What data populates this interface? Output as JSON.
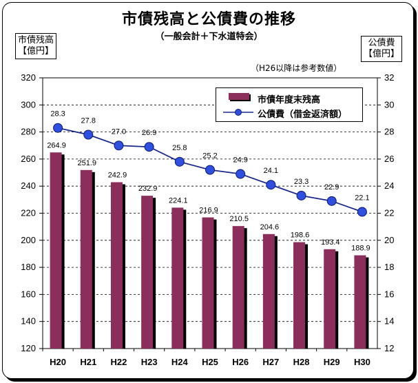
{
  "title": "市債残高と公債費の推移",
  "subtitle": "（一般会計＋下水道特会）",
  "note": "（H26以降は参考数値）",
  "unit_left": [
    "市債残高",
    "【億円】"
  ],
  "unit_right": [
    "公債費",
    "【億円】"
  ],
  "colors": {
    "bar": "#8B2E5C",
    "bar_shadow": "#000000",
    "line": "#1a2a8c",
    "marker": "#2f4fe0"
  },
  "chart_data": {
    "type": "bar",
    "categories": [
      "H20",
      "H21",
      "H22",
      "H23",
      "H24",
      "H25",
      "H26",
      "H27",
      "H28",
      "H29",
      "H30"
    ],
    "series": [
      {
        "name": "市債年度末残高",
        "type": "bar",
        "axis": "left",
        "values": [
          264.9,
          251.9,
          242.9,
          232.9,
          224.1,
          216.9,
          210.5,
          204.6,
          198.6,
          193.4,
          188.9
        ],
        "labels": [
          "264.9",
          "251.9",
          "242.9",
          "232.9",
          "224.1",
          "216.9",
          "210.5",
          "204.6",
          "198.6",
          "193.4",
          "188.9"
        ]
      },
      {
        "name": "公債費（借金返済額）",
        "type": "line",
        "axis": "right",
        "values": [
          28.3,
          27.8,
          27.0,
          26.9,
          25.8,
          25.2,
          24.9,
          24.1,
          23.3,
          22.9,
          22.1
        ],
        "labels": [
          "28.3",
          "27.8",
          "27.0",
          "26.9",
          "25.8",
          "25.2",
          "24.9",
          "24.1",
          "23.3",
          "22.9",
          "22.1"
        ]
      }
    ],
    "y_left": {
      "min": 120,
      "max": 320,
      "step": 20,
      "ticks": [
        "120",
        "140",
        "160",
        "180",
        "200",
        "220",
        "240",
        "260",
        "280",
        "300",
        "320"
      ]
    },
    "y_right": {
      "min": 12,
      "max": 32,
      "step": 2,
      "ticks": [
        "12",
        "14",
        "16",
        "18",
        "20",
        "22",
        "24",
        "26",
        "28",
        "30",
        "32"
      ]
    },
    "grid": true,
    "legend_position": "top-right"
  }
}
